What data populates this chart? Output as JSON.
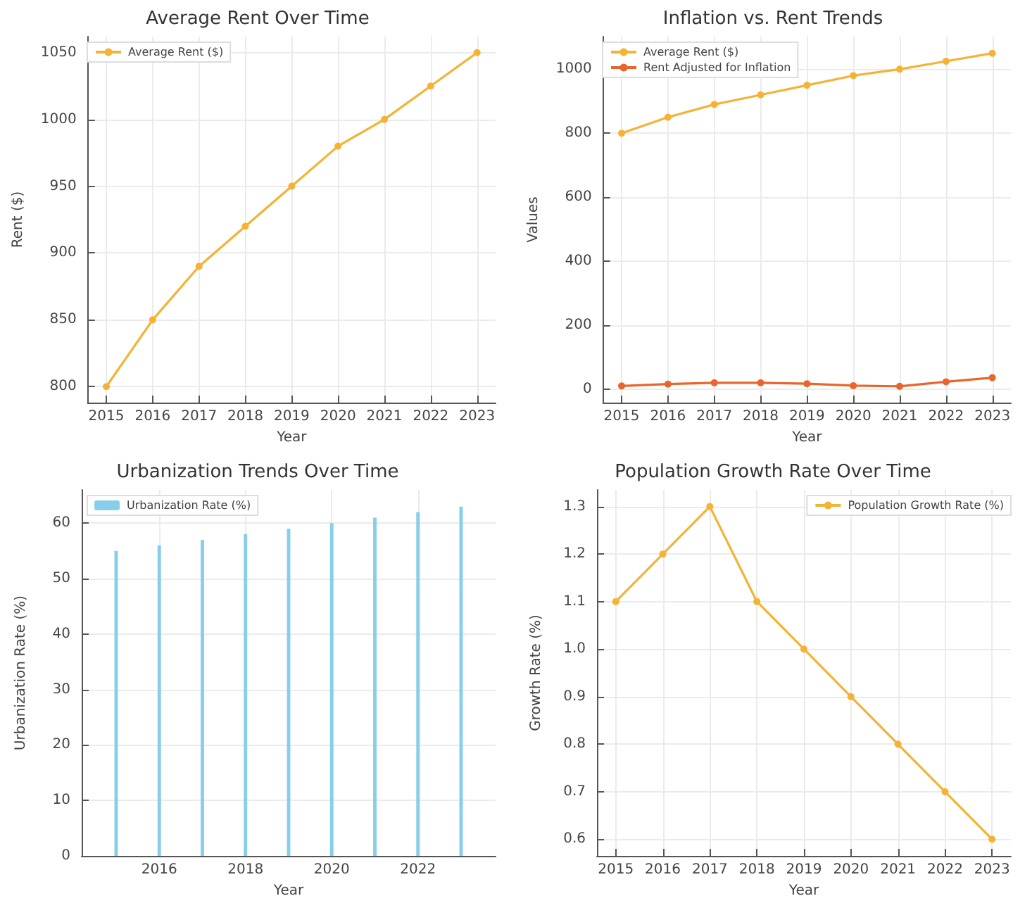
{
  "chart_data": [
    {
      "type": "line",
      "title": "Average Rent Over Time",
      "xlabel": "Year",
      "ylabel": "Rent ($)",
      "x": [
        2015,
        2016,
        2017,
        2018,
        2019,
        2020,
        2021,
        2022,
        2023
      ],
      "series": [
        {
          "name": "Average Rent ($)",
          "color": "#f5b335",
          "values": [
            800,
            850,
            890,
            920,
            950,
            980,
            1000,
            1025,
            1050
          ]
        }
      ],
      "xlim": [
        2014.6,
        2023.4
      ],
      "xticks": [
        2015,
        2016,
        2017,
        2018,
        2019,
        2020,
        2021,
        2022,
        2023
      ],
      "ylim": [
        788,
        1062
      ],
      "yticks": [
        800,
        850,
        900,
        950,
        1000,
        1050
      ],
      "grid": true,
      "legend": "top left",
      "marker": "circle"
    },
    {
      "type": "line",
      "title": "Inflation vs. Rent Trends",
      "xlabel": "Year",
      "ylabel": "Values",
      "x": [
        2015,
        2016,
        2017,
        2018,
        2019,
        2020,
        2021,
        2022,
        2023
      ],
      "series": [
        {
          "name": "Average Rent ($)",
          "color": "#f5b335",
          "values": [
            800,
            850,
            890,
            920,
            950,
            980,
            1000,
            1025,
            1050
          ]
        },
        {
          "name": "Rent Adjusted for Inflation",
          "color": "#e8652c",
          "values": [
            10,
            16,
            20,
            20,
            17,
            11,
            9,
            23,
            36
          ]
        }
      ],
      "xlim": [
        2014.6,
        2023.4
      ],
      "xticks": [
        2015,
        2016,
        2017,
        2018,
        2019,
        2020,
        2021,
        2022,
        2023
      ],
      "ylim": [
        -42,
        1102
      ],
      "yticks": [
        0,
        200,
        400,
        600,
        800,
        1000
      ],
      "grid": true,
      "legend": "top left",
      "marker": "circle"
    },
    {
      "type": "bar",
      "title": "Urbanization Trends Over Time",
      "xlabel": "Year",
      "ylabel": "Urbanization Rate (%)",
      "x": [
        2015,
        2016,
        2017,
        2018,
        2019,
        2020,
        2021,
        2022,
        2023
      ],
      "series": [
        {
          "name": "Urbanization Rate (%)",
          "color": "#87ceeb",
          "values": [
            55,
            56,
            57,
            58,
            59,
            60,
            61,
            62,
            63
          ]
        }
      ],
      "xlim": [
        2014.2,
        2023.8
      ],
      "xticks": [
        2016,
        2018,
        2020,
        2022
      ],
      "ylim": [
        0,
        66
      ],
      "yticks": [
        0,
        10,
        20,
        30,
        40,
        50,
        60
      ],
      "grid": true,
      "legend": "top left"
    },
    {
      "type": "line",
      "title": "Population Growth Rate Over Time",
      "xlabel": "Year",
      "ylabel": "Growth Rate (%)",
      "x": [
        2015,
        2016,
        2017,
        2018,
        2019,
        2020,
        2021,
        2022,
        2023
      ],
      "series": [
        {
          "name": "Population Growth Rate (%)",
          "color": "#f5b335",
          "values": [
            1.1,
            1.2,
            1.3,
            1.1,
            1.0,
            0.9,
            0.8,
            0.7,
            0.6
          ]
        }
      ],
      "xlim": [
        2014.6,
        2023.4
      ],
      "xticks": [
        2015,
        2016,
        2017,
        2018,
        2019,
        2020,
        2021,
        2022,
        2023
      ],
      "ylim": [
        0.565,
        1.335
      ],
      "yticks": [
        0.6,
        0.7,
        0.8,
        0.9,
        {
          "value": 1,
          "label": "1.0"
        },
        1.1,
        1.2,
        1.3
      ],
      "grid": true,
      "legend": "top right",
      "marker": "circle"
    }
  ]
}
